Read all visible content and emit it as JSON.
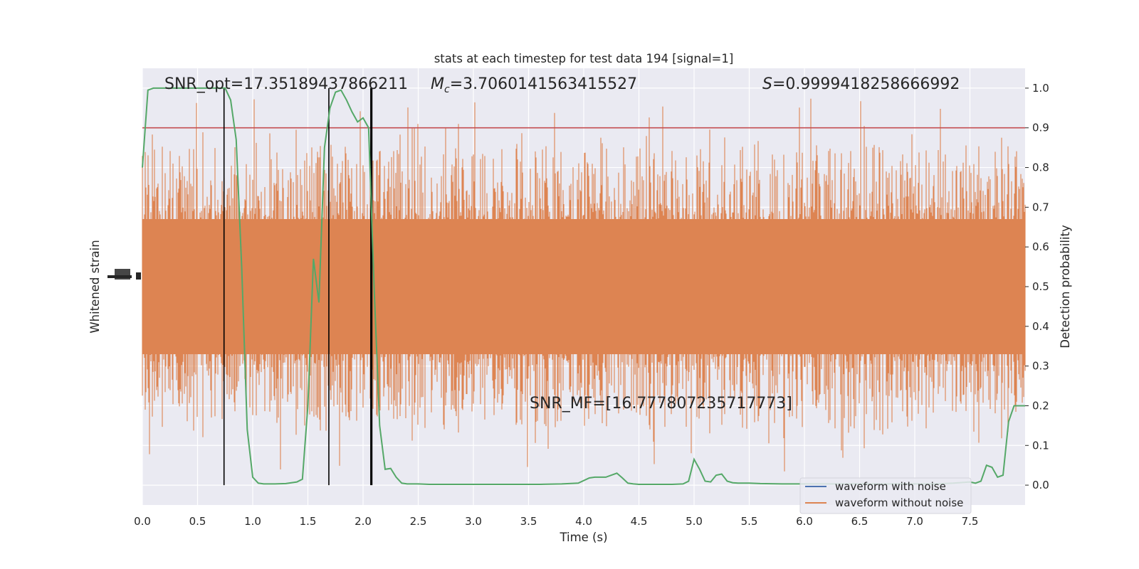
{
  "chart_data": {
    "type": "line",
    "title": "stats at each timestep for test data 194 [signal=1]",
    "xlabel": "Time (s)",
    "ylabel_left": "Whitened strain",
    "ylabel_right": "Detection probability",
    "xlim": [
      0.0,
      8.0
    ],
    "ylim_right": [
      -0.05,
      1.05
    ],
    "grid": true,
    "x_ticks": [
      "0.0",
      "0.5",
      "1.0",
      "1.5",
      "2.0",
      "2.5",
      "3.0",
      "3.5",
      "4.0",
      "4.5",
      "5.0",
      "5.5",
      "6.0",
      "6.5",
      "7.0",
      "7.5"
    ],
    "y_ticks_right": [
      "0.0",
      "0.1",
      "0.2",
      "0.3",
      "0.4",
      "0.5",
      "0.6",
      "0.7",
      "0.8",
      "0.9",
      "1.0"
    ],
    "threshold": 0.9,
    "colors": {
      "with_noise": "#4c72b0",
      "without_noise": "#dd8452",
      "probability": "#55a868",
      "threshold": "#c44e52",
      "vlines": "#000000",
      "background": "#eaeaf2",
      "grid": "#ffffff"
    },
    "vertical_lines_x": [
      0.74,
      1.69,
      2.07,
      2.08
    ],
    "annotations": {
      "snr_opt": "SNR_opt=17.35189437866211",
      "mc_symbol": "M",
      "mc_sub": "c",
      "mc_value": "=3.7060141563415527",
      "s_symbol": "S",
      "s_value": "=0.9999418258666992",
      "snr_mf": "SNR_MF=[16.777807235717773]"
    },
    "legend": [
      {
        "label": "waveform with noise"
      },
      {
        "label": "waveform without noise"
      }
    ],
    "legend_position": "lower right",
    "series": [
      {
        "name": "Detection probability",
        "x": [
          0.0,
          0.05,
          0.1,
          0.15,
          0.2,
          0.3,
          0.4,
          0.5,
          0.6,
          0.7,
          0.75,
          0.8,
          0.85,
          0.9,
          0.95,
          1.0,
          1.05,
          1.1,
          1.2,
          1.3,
          1.4,
          1.45,
          1.5,
          1.55,
          1.6,
          1.65,
          1.7,
          1.75,
          1.8,
          1.85,
          1.9,
          1.95,
          2.0,
          2.05,
          2.1,
          2.15,
          2.2,
          2.25,
          2.3,
          2.35,
          2.4,
          2.5,
          2.6,
          2.8,
          3.0,
          3.2,
          3.4,
          3.6,
          3.8,
          3.95,
          4.05,
          4.1,
          4.2,
          4.25,
          4.3,
          4.35,
          4.4,
          4.45,
          4.5,
          4.6,
          4.8,
          4.9,
          4.95,
          5.0,
          5.05,
          5.1,
          5.15,
          5.2,
          5.25,
          5.3,
          5.35,
          5.4,
          5.5,
          5.6,
          5.8,
          6.0,
          6.3,
          6.6,
          6.9,
          7.2,
          7.35,
          7.5,
          7.55,
          7.6,
          7.65,
          7.7,
          7.75,
          7.8,
          7.85,
          7.9,
          7.95,
          8.0
        ],
        "y": [
          0.8,
          0.995,
          1.0,
          1.0,
          1.0,
          1.0,
          1.0,
          1.0,
          1.0,
          1.0,
          1.0,
          0.97,
          0.87,
          0.55,
          0.14,
          0.02,
          0.005,
          0.003,
          0.003,
          0.004,
          0.008,
          0.015,
          0.2,
          0.57,
          0.46,
          0.85,
          0.95,
          0.99,
          0.995,
          0.97,
          0.94,
          0.915,
          0.925,
          0.9,
          0.5,
          0.15,
          0.04,
          0.042,
          0.02,
          0.005,
          0.003,
          0.003,
          0.002,
          0.002,
          0.002,
          0.002,
          0.002,
          0.002,
          0.003,
          0.005,
          0.018,
          0.02,
          0.02,
          0.025,
          0.03,
          0.018,
          0.005,
          0.003,
          0.002,
          0.002,
          0.002,
          0.003,
          0.01,
          0.065,
          0.04,
          0.01,
          0.008,
          0.025,
          0.028,
          0.01,
          0.006,
          0.005,
          0.005,
          0.004,
          0.003,
          0.003,
          0.003,
          0.003,
          0.003,
          0.003,
          0.005,
          0.008,
          0.005,
          0.01,
          0.05,
          0.045,
          0.02,
          0.025,
          0.16,
          0.2,
          0.2,
          0.2
        ]
      }
    ]
  }
}
